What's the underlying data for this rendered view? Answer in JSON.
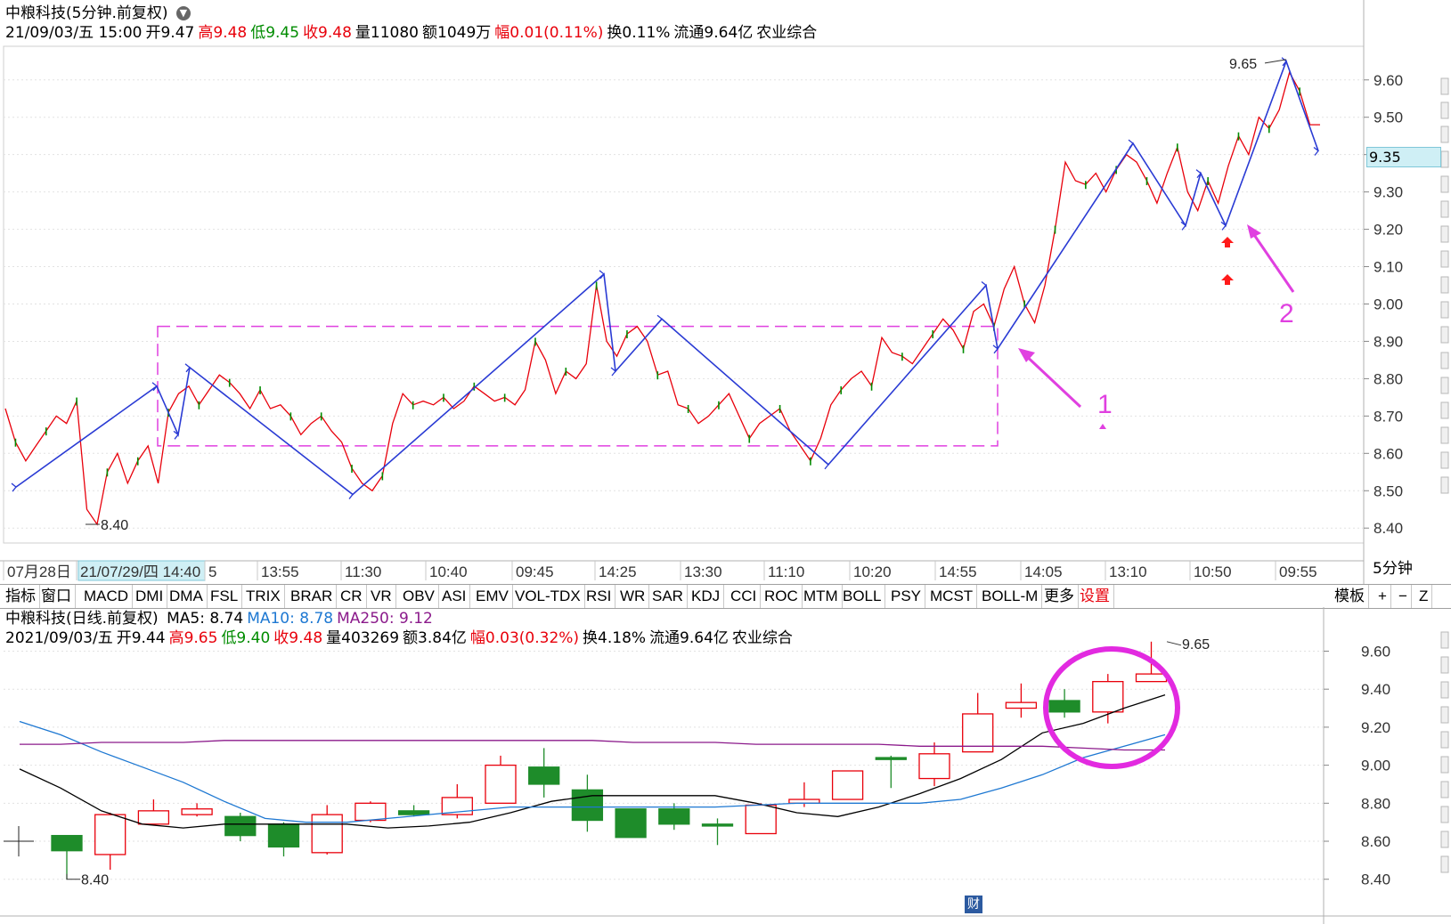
{
  "upper": {
    "header_name": "中粮科技(5分钟.前复权)",
    "header_icon": "chevron-down-icon",
    "info": [
      {
        "label": "21/09/03/五 15:00",
        "cls": "bk"
      },
      {
        "label": "开9.47",
        "cls": "bk"
      },
      {
        "label": "高9.48",
        "cls": "up"
      },
      {
        "label": "低9.45",
        "cls": "dn"
      },
      {
        "label": "收9.48",
        "cls": "up"
      },
      {
        "label": "量11080",
        "cls": "bk"
      },
      {
        "label": "额1049万",
        "cls": "bk"
      },
      {
        "label": "幅0.01(0.11%)",
        "cls": "up"
      },
      {
        "label": "换0.11%",
        "cls": "bk"
      },
      {
        "label": "流通9.64亿",
        "cls": "bk"
      },
      {
        "label": "农业综合",
        "cls": "bk"
      }
    ],
    "current_price_tag": "9.35",
    "period_label": "5分钟"
  },
  "toolbar": {
    "items": [
      "指标",
      "窗口",
      "MACD",
      "DMI",
      "DMA",
      "FSL",
      "TRIX",
      "BRAR",
      "CR",
      "VR",
      "OBV",
      "ASI",
      "EMV",
      "VOL-TDX",
      "RSI",
      "WR",
      "SAR",
      "KDJ",
      "CCI",
      "ROC",
      "MTM",
      "BOLL",
      "PSY",
      "MCST",
      "BOLL-M",
      "更多",
      "设置"
    ],
    "right_items": [
      "模板",
      "+",
      "−",
      "Z"
    ]
  },
  "lower": {
    "header_name": "中粮科技(日线.前复权)",
    "ma_labels": [
      {
        "label": "MA5: 8.74",
        "cls": "ma5"
      },
      {
        "label": "MA10: 8.78",
        "cls": "ma10"
      },
      {
        "label": "MA250: 9.12",
        "cls": "ma250"
      }
    ],
    "info": [
      {
        "label": "2021/09/03/五",
        "cls": "bk"
      },
      {
        "label": "开9.44",
        "cls": "bk"
      },
      {
        "label": "高9.65",
        "cls": "up"
      },
      {
        "label": "低9.40",
        "cls": "dn"
      },
      {
        "label": "收9.48",
        "cls": "up"
      },
      {
        "label": "量403269",
        "cls": "bk"
      },
      {
        "label": "额3.84亿",
        "cls": "bk"
      },
      {
        "label": "幅0.03(0.32%)",
        "cls": "up"
      },
      {
        "label": "换4.18%",
        "cls": "bk"
      },
      {
        "label": "流通9.64亿",
        "cls": "bk"
      },
      {
        "label": "农业综合",
        "cls": "bk"
      }
    ],
    "finance_badge": "财"
  },
  "chart_data": [
    {
      "type": "line",
      "title": "",
      "y_axis_ticks": [
        "9.60",
        "9.50",
        "9.40",
        "9.30",
        "9.20",
        "9.10",
        "9.00",
        "8.90",
        "8.80",
        "8.70",
        "8.60",
        "8.50",
        "8.40"
      ],
      "ylim": [
        8.36,
        9.69
      ],
      "x_axis_labels": [
        "07月28日",
        "21/07/29/四 14:40",
        "5",
        "13:55",
        "11:30",
        "10:40",
        "09:45",
        "14:25",
        "13:30",
        "11:10",
        "10:20",
        "14:55",
        "14:05",
        "13:10",
        "10:50",
        "09:55"
      ],
      "price_series": [
        8.72,
        8.63,
        8.58,
        8.62,
        8.66,
        8.7,
        8.68,
        8.74,
        8.45,
        8.41,
        8.55,
        8.6,
        8.52,
        8.58,
        8.62,
        8.52,
        8.71,
        8.76,
        8.78,
        8.73,
        8.77,
        8.81,
        8.79,
        8.76,
        8.72,
        8.77,
        8.72,
        8.73,
        8.7,
        8.65,
        8.68,
        8.7,
        8.66,
        8.63,
        8.56,
        8.52,
        8.5,
        8.54,
        8.68,
        8.76,
        8.73,
        8.74,
        8.73,
        8.75,
        8.72,
        8.74,
        8.78,
        8.76,
        8.74,
        8.75,
        8.73,
        8.77,
        8.9,
        8.85,
        8.76,
        8.82,
        8.8,
        8.84,
        9.05,
        8.9,
        8.86,
        8.92,
        8.94,
        8.9,
        8.81,
        8.82,
        8.73,
        8.72,
        8.68,
        8.7,
        8.73,
        8.76,
        8.7,
        8.64,
        8.68,
        8.7,
        8.72,
        8.66,
        8.62,
        8.58,
        8.64,
        8.73,
        8.77,
        8.8,
        8.82,
        8.78,
        8.91,
        8.87,
        8.86,
        8.84,
        8.88,
        8.92,
        8.96,
        8.93,
        8.88,
        8.98,
        9.0,
        8.94,
        9.04,
        9.1,
        9.0,
        8.95,
        9.05,
        9.2,
        9.38,
        9.33,
        9.32,
        9.35,
        9.3,
        9.36,
        9.4,
        9.38,
        9.33,
        9.27,
        9.35,
        9.42,
        9.3,
        9.25,
        9.33,
        9.27,
        9.37,
        9.45,
        9.4,
        9.5,
        9.47,
        9.52,
        9.62,
        9.57,
        9.48,
        9.48
      ],
      "zigzag": [
        [
          8.51
        ],
        [
          8.78
        ],
        [
          8.65
        ],
        [
          8.83
        ],
        [
          8.49
        ],
        [
          9.08
        ],
        [
          8.82
        ],
        [
          8.96
        ],
        [
          8.57
        ],
        [
          9.05
        ],
        [
          8.88
        ],
        [
          9.43
        ],
        [
          9.21
        ],
        [
          9.35
        ],
        [
          9.21
        ],
        [
          9.65
        ],
        [
          9.41
        ]
      ],
      "annotations": [
        {
          "text": "8.40",
          "type": "low-marker"
        },
        {
          "text": "9.65",
          "type": "high-marker"
        },
        {
          "text": "1",
          "type": "label"
        },
        {
          "text": "2",
          "type": "label"
        }
      ],
      "consolidation_box": {
        "y_range": [
          8.62,
          8.94
        ]
      },
      "grid": true
    },
    {
      "type": "candlestick",
      "title": "",
      "y_axis_ticks": [
        "9.60",
        "9.40",
        "9.20",
        "9.00",
        "8.80",
        "8.60",
        "8.40"
      ],
      "ylim": [
        8.38,
        9.71
      ],
      "candles": [
        {
          "o": 8.63,
          "c": 8.55,
          "h": 8.63,
          "l": 8.4
        },
        {
          "o": 8.53,
          "c": 8.74,
          "h": 8.75,
          "l": 8.45
        },
        {
          "o": 8.69,
          "c": 8.76,
          "h": 8.82,
          "l": 8.69
        },
        {
          "o": 8.74,
          "c": 8.77,
          "h": 8.8,
          "l": 8.73
        },
        {
          "o": 8.73,
          "c": 8.63,
          "h": 8.75,
          "l": 8.6
        },
        {
          "o": 8.69,
          "c": 8.57,
          "h": 8.7,
          "l": 8.52
        },
        {
          "o": 8.54,
          "c": 8.74,
          "h": 8.79,
          "l": 8.53
        },
        {
          "o": 8.71,
          "c": 8.8,
          "h": 8.81,
          "l": 8.7
        },
        {
          "o": 8.76,
          "c": 8.74,
          "h": 8.79,
          "l": 8.73
        },
        {
          "o": 8.74,
          "c": 8.83,
          "h": 8.9,
          "l": 8.72
        },
        {
          "o": 8.8,
          "c": 9.0,
          "h": 9.05,
          "l": 8.8
        },
        {
          "o": 8.99,
          "c": 8.9,
          "h": 9.09,
          "l": 8.83
        },
        {
          "o": 8.87,
          "c": 8.71,
          "h": 8.95,
          "l": 8.65
        },
        {
          "o": 8.77,
          "c": 8.62,
          "h": 8.77,
          "l": 8.62
        },
        {
          "o": 8.77,
          "c": 8.69,
          "h": 8.8,
          "l": 8.66
        },
        {
          "o": 8.69,
          "c": 8.68,
          "h": 8.72,
          "l": 8.58
        },
        {
          "o": 8.64,
          "c": 8.79,
          "h": 8.8,
          "l": 8.64
        },
        {
          "o": 8.8,
          "c": 8.82,
          "h": 8.91,
          "l": 8.78
        },
        {
          "o": 8.82,
          "c": 8.97,
          "h": 8.97,
          "l": 8.82
        },
        {
          "o": 9.04,
          "c": 9.03,
          "h": 9.05,
          "l": 8.88
        },
        {
          "o": 8.93,
          "c": 9.06,
          "h": 9.12,
          "l": 8.89
        },
        {
          "o": 9.07,
          "c": 9.27,
          "h": 9.38,
          "l": 9.07
        },
        {
          "o": 9.3,
          "c": 9.33,
          "h": 9.43,
          "l": 9.25
        },
        {
          "o": 9.34,
          "c": 9.28,
          "h": 9.4,
          "l": 9.25
        },
        {
          "o": 9.28,
          "c": 9.44,
          "h": 9.48,
          "l": 9.22
        },
        {
          "o": 9.44,
          "c": 9.48,
          "h": 9.65,
          "l": 9.44
        }
      ],
      "ma_series": [
        {
          "name": "MA5",
          "color": "#000000",
          "values": [
            8.98,
            8.88,
            8.76,
            8.69,
            8.67,
            8.69,
            8.69,
            8.69,
            8.69,
            8.67,
            8.68,
            8.7,
            8.75,
            8.81,
            8.84,
            8.84,
            8.84,
            8.84,
            8.8,
            8.75,
            8.73,
            8.78,
            8.85,
            8.93,
            9.03,
            9.17,
            9.22,
            9.3,
            9.37
          ]
        },
        {
          "name": "MA10",
          "color": "#1e78d2",
          "values": [
            9.23,
            9.16,
            9.07,
            8.99,
            8.91,
            8.81,
            8.72,
            8.7,
            8.7,
            8.72,
            8.74,
            8.76,
            8.78,
            8.78,
            8.78,
            8.78,
            8.78,
            8.78,
            8.79,
            8.8,
            8.8,
            8.8,
            8.8,
            8.82,
            8.88,
            8.95,
            9.04,
            9.1,
            9.16
          ]
        },
        {
          "name": "MA250",
          "color": "#8b1a8b",
          "values": [
            9.11,
            9.11,
            9.12,
            9.12,
            9.12,
            9.13,
            9.13,
            9.13,
            9.13,
            9.13,
            9.13,
            9.13,
            9.13,
            9.13,
            9.13,
            9.12,
            9.12,
            9.12,
            9.11,
            9.11,
            9.11,
            9.11,
            9.1,
            9.1,
            9.1,
            9.1,
            9.09,
            9.08,
            9.08
          ]
        }
      ],
      "annotations": [
        {
          "text": "8.40",
          "type": "low-marker"
        },
        {
          "text": "9.65",
          "type": "high-marker"
        }
      ],
      "grid": true
    }
  ]
}
